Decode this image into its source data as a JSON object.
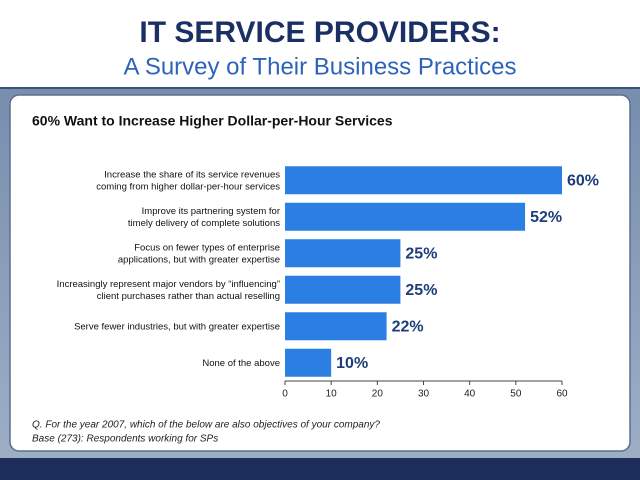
{
  "header": {
    "title": "IT SERVICE PROVIDERS:",
    "subtitle": "A Survey of Their Business Practices"
  },
  "chart_data": {
    "type": "bar",
    "orientation": "horizontal",
    "title": "60% Want to Increase Higher Dollar-per-Hour Services",
    "categories": [
      "Increase the share of its service revenues\ncoming from higher dollar-per-hour services",
      "Improve its partnering system for\ntimely delivery of complete solutions",
      "Focus on fewer types of enterprise\napplications, but with greater expertise",
      "Increasingly represent major vendors by “influencing”\nclient purchases rather than actual reselling",
      "Serve fewer industries, but with greater expertise",
      "None of the above"
    ],
    "values": [
      60,
      52,
      25,
      25,
      22,
      10
    ],
    "value_labels": [
      "60%",
      "52%",
      "25%",
      "25%",
      "22%",
      "10%"
    ],
    "color": "#2b7fe3",
    "xlim": [
      0,
      60
    ],
    "xticks": [
      0,
      10,
      20,
      30,
      40,
      50,
      60
    ]
  },
  "notes": [
    "Q. For the year 2007, which of the below are also objectives of your company?",
    "Base (273):  Respondents working for SPs"
  ]
}
